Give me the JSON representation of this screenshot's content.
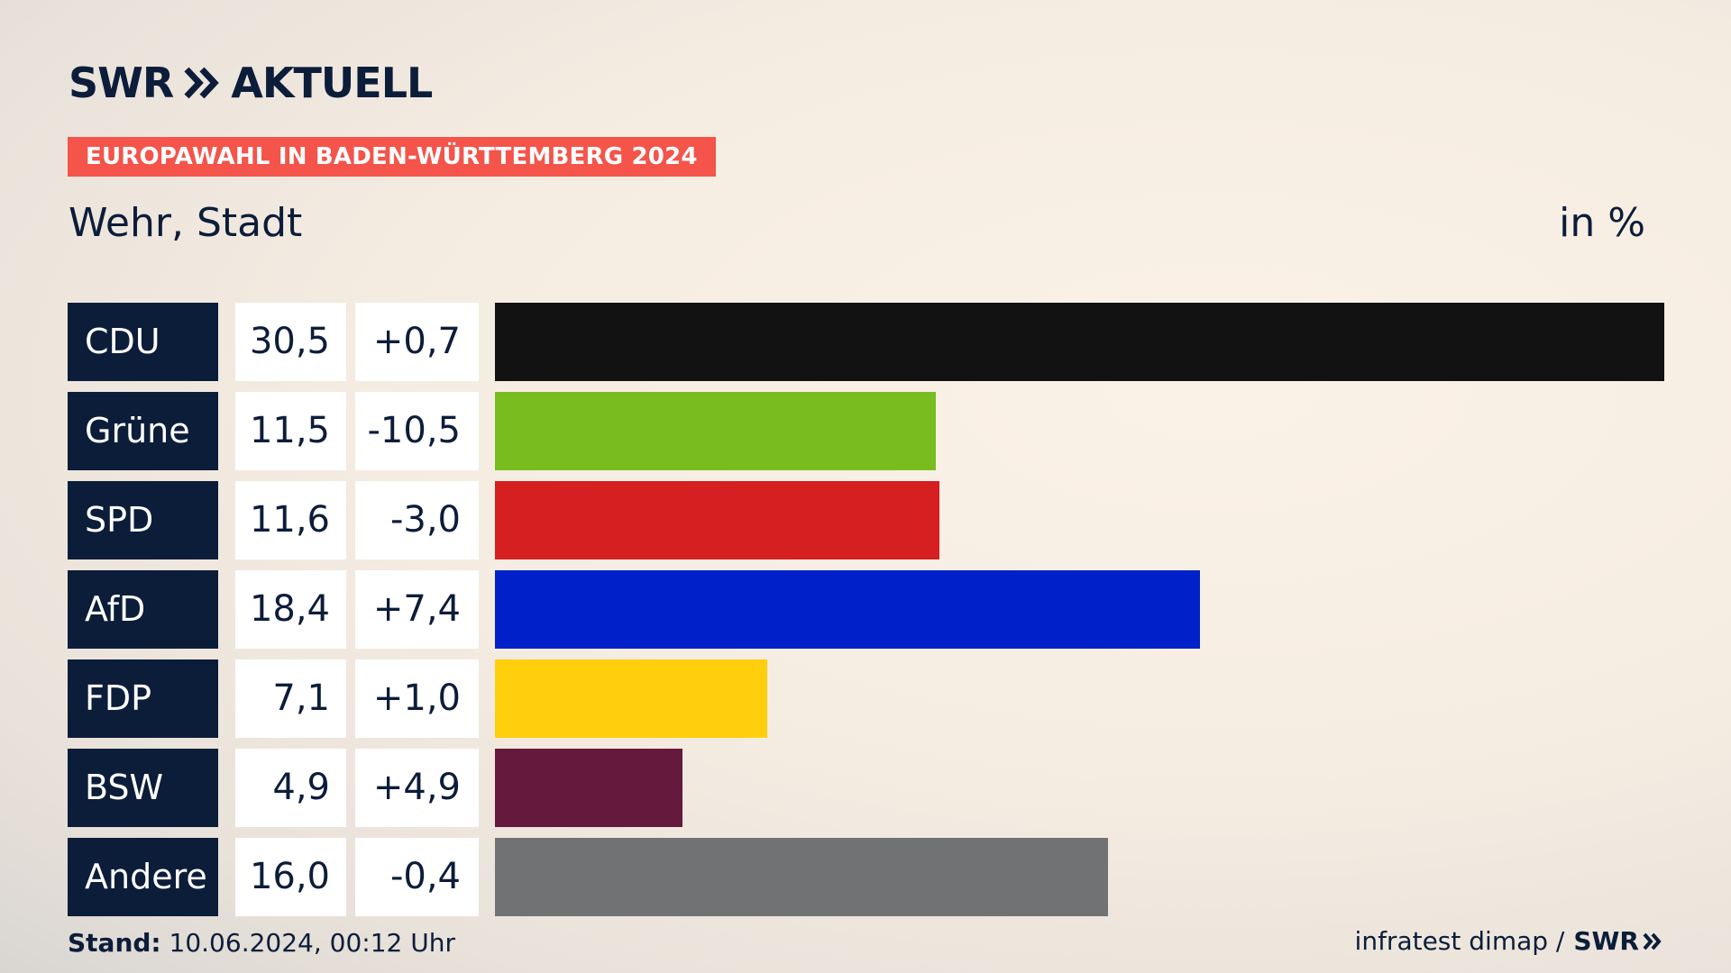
{
  "header": {
    "brand_swr": "SWR",
    "brand_aktuell": "AKTUELL",
    "tag": "EUROPAWAHL IN BADEN-WÜRTTEMBERG 2024",
    "place": "Wehr, Stadt",
    "unit": "in %"
  },
  "footer": {
    "stand_label": "Stand:",
    "stand_value": "10.06.2024, 00:12 Uhr",
    "source": "infratest dimap /",
    "source_brand": "SWR"
  },
  "chart_data": {
    "type": "bar",
    "title": "Wehr, Stadt",
    "unit": "in %",
    "categories": [
      "CDU",
      "Grüne",
      "SPD",
      "AfD",
      "FDP",
      "BSW",
      "Andere"
    ],
    "values": [
      30.5,
      11.5,
      11.6,
      18.4,
      7.1,
      4.9,
      16.0
    ],
    "value_labels": [
      "30,5",
      "11,5",
      "11,6",
      "18,4",
      "7,1",
      "4,9",
      "16,0"
    ],
    "diff_labels": [
      "+0,7",
      "-10,5",
      "-3,0",
      "+7,4",
      "+1,0",
      "+4,9",
      "-0,4"
    ],
    "colors": [
      "#121212",
      "#79bc1f",
      "#d51f21",
      "#0021c9",
      "#ffcf0d",
      "#65193d",
      "#707274"
    ],
    "xlim": [
      0,
      30.5
    ]
  }
}
